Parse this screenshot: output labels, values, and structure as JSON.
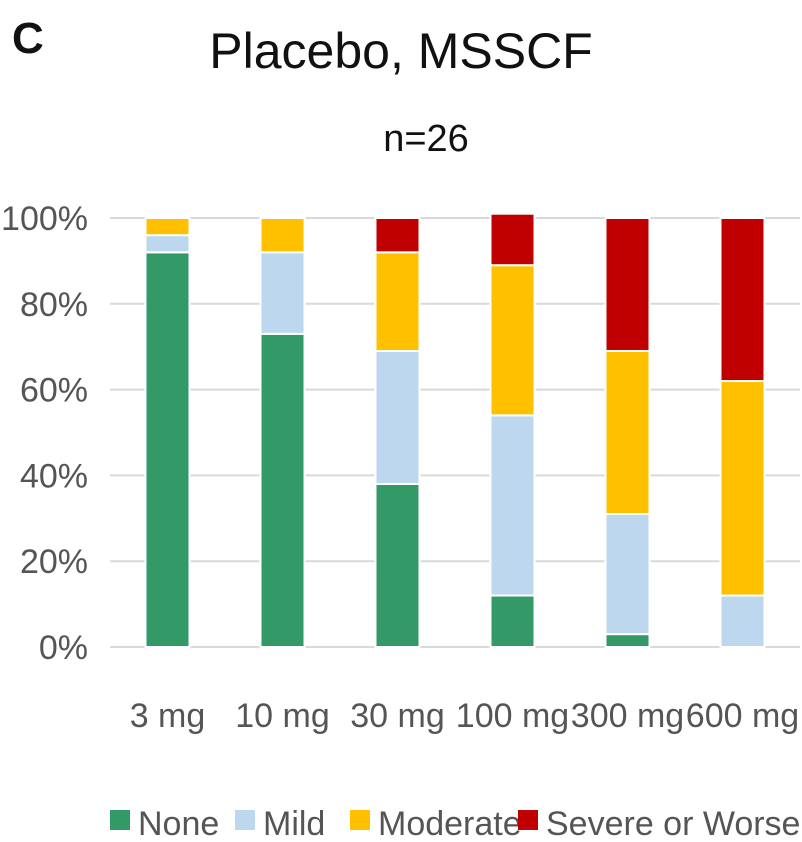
{
  "panel_letter": "C",
  "chart_data": {
    "type": "bar",
    "stacked": true,
    "title": "Placebo, MSSCF",
    "subtitle": "n=26",
    "categories": [
      "3 mg",
      "10 mg",
      "30 mg",
      "100 mg",
      "300 mg",
      "600 mg"
    ],
    "series": [
      {
        "name": "None",
        "color": "#339966",
        "values": [
          92,
          73,
          38,
          12,
          3,
          0
        ]
      },
      {
        "name": "Mild",
        "color": "#BDD7EE",
        "values": [
          4,
          19,
          31,
          42,
          28,
          12
        ]
      },
      {
        "name": "Moderate",
        "color": "#FFC000",
        "values": [
          4,
          8,
          23,
          35,
          38,
          50
        ]
      },
      {
        "name": "Severe or Worse",
        "color": "#C00000",
        "values": [
          0,
          0,
          8,
          12,
          31,
          38
        ]
      }
    ],
    "ylim": [
      0,
      100
    ],
    "yticks": [
      "0%",
      "20%",
      "40%",
      "60%",
      "80%",
      "100%"
    ],
    "ytick_values": [
      0,
      20,
      40,
      60,
      80,
      100
    ],
    "xlabel": "",
    "ylabel": "",
    "grid": true,
    "legend": "bottom"
  }
}
